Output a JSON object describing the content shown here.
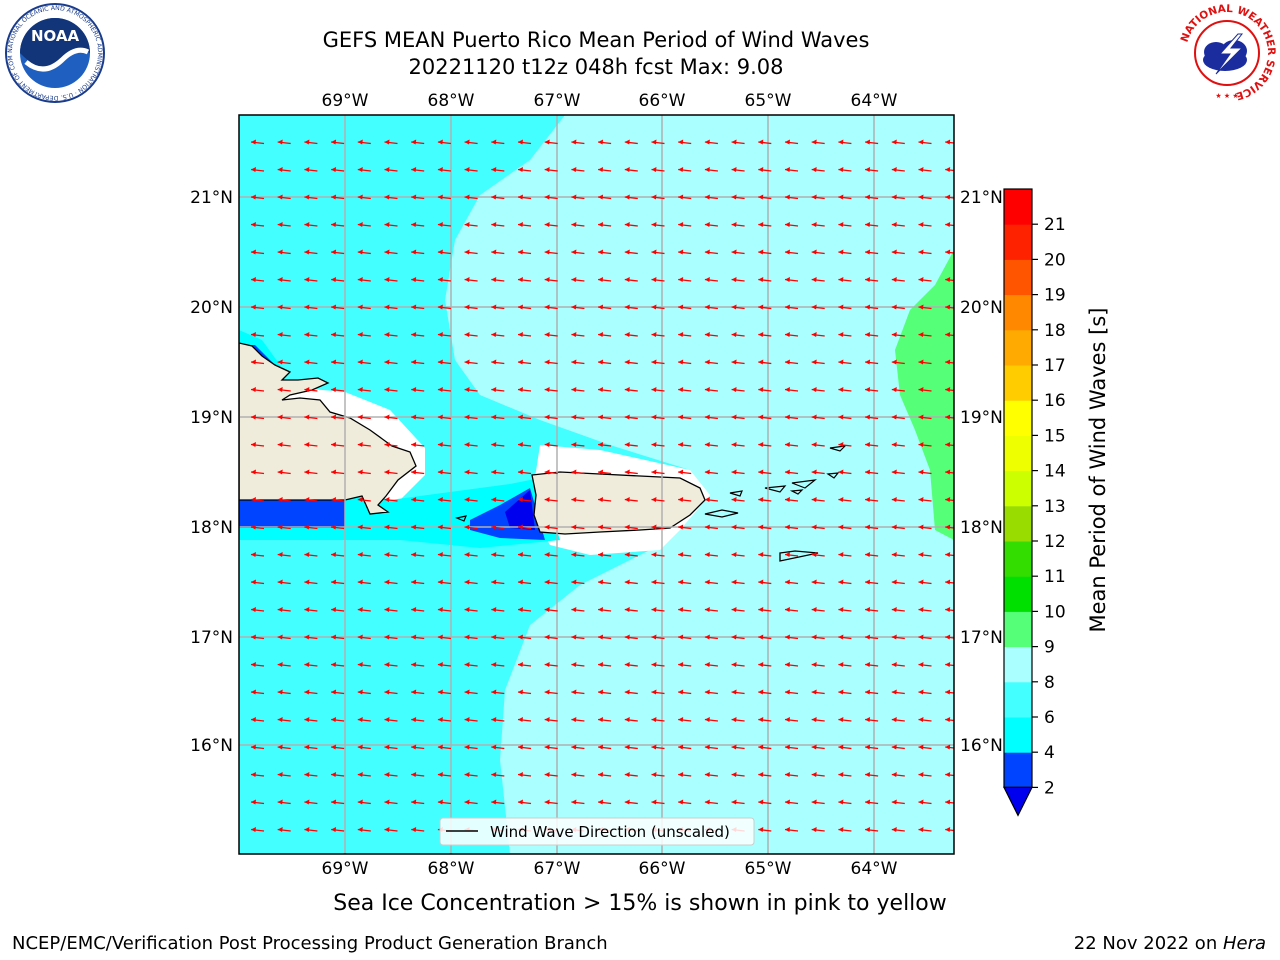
{
  "header": {
    "title_line1": "GEFS MEAN Puerto Rico Mean Period of Wind Waves",
    "title_line2": "20221120 t12z 048h fcst   Max: 9.08"
  },
  "logos": {
    "left": "NOAA",
    "left_ring": "NATIONAL OCEANIC AND ATMOSPHERIC ADMINISTRATION · U.S. DEPARTMENT OF COMMERCE",
    "right_ring": "NATIONAL WEATHER SERVICE"
  },
  "map": {
    "lon_labels": [
      "69°W",
      "68°W",
      "67°W",
      "66°W",
      "65°W",
      "64°W"
    ],
    "lat_labels": [
      "21°N",
      "20°N",
      "19°N",
      "18°N",
      "17°N",
      "16°N"
    ],
    "legend_label": "Wind Wave Direction (unscaled)",
    "arrow_color": "#ff0000",
    "grid_color": "#b0b0b0"
  },
  "colorbar": {
    "label": "Mean Period of Wind Waves [s]",
    "ticks": [
      "2",
      "4",
      "6",
      "8",
      "9",
      "10",
      "11",
      "12",
      "13",
      "14",
      "15",
      "16",
      "17",
      "18",
      "19",
      "20",
      "21"
    ],
    "colors": [
      "#0044ff",
      "#00ffff",
      "#44ffff",
      "#aaffff",
      "#55ff77",
      "#00e000",
      "#33dd00",
      "#99dd00",
      "#ccff00",
      "#eeff00",
      "#ffff00",
      "#ffcc00",
      "#ffaa00",
      "#ff8800",
      "#ff5500",
      "#ff2200",
      "#ff0000"
    ],
    "under_color": "#0000ee"
  },
  "note": "Sea Ice Concentration > 15% is shown in pink to yellow",
  "footer": {
    "left": "NCEP/EMC/Verification Post Processing Product Generation Branch",
    "right_prefix": "22 Nov 2022 on ",
    "right_host": "Hera"
  }
}
